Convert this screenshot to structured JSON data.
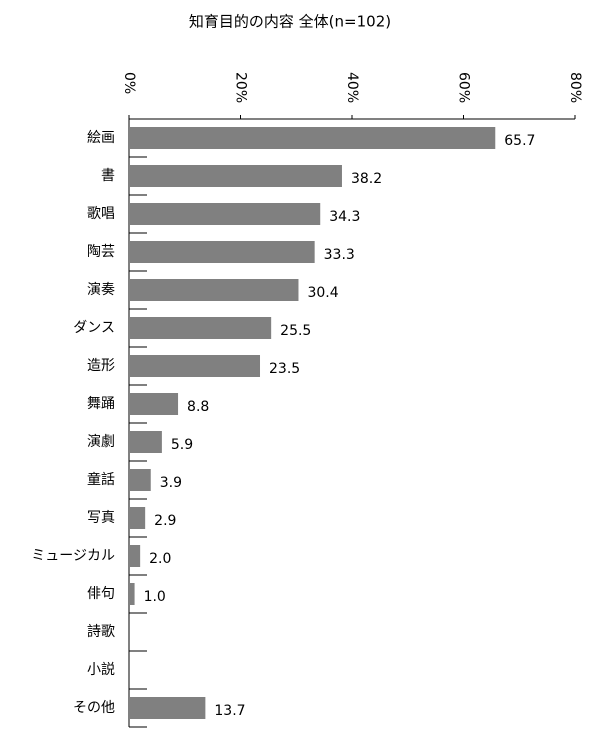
{
  "chart_data": {
    "type": "bar",
    "orientation": "horizontal",
    "title": "知育目的の内容 全体(n=102)",
    "categories": [
      "絵画",
      "書",
      "歌唱",
      "陶芸",
      "演奏",
      "ダンス",
      "造形",
      "舞踊",
      "演劇",
      "童話",
      "写真",
      "ミュージカル",
      "俳句",
      "詩歌",
      "小説",
      "その他"
    ],
    "values": [
      65.7,
      38.2,
      34.3,
      33.3,
      30.4,
      25.5,
      23.5,
      8.8,
      5.9,
      3.9,
      2.9,
      2.0,
      1.0,
      null,
      null,
      13.7
    ],
    "value_labels": [
      "65.7",
      "38.2",
      "34.3",
      "33.3",
      "30.4",
      "25.5",
      "23.5",
      "8.8",
      "5.9",
      "3.9",
      "2.9",
      "2.0",
      "1.0",
      null,
      null,
      "13.7"
    ],
    "color": "#808080",
    "xlim": [
      0,
      80
    ],
    "xticks": [
      {
        "value": 0,
        "label": "0%"
      },
      {
        "value": 20,
        "label": "20%"
      },
      {
        "value": 40,
        "label": "40%"
      },
      {
        "value": 60,
        "label": "60%"
      },
      {
        "value": 80,
        "label": "80%"
      }
    ],
    "grid": false
  }
}
